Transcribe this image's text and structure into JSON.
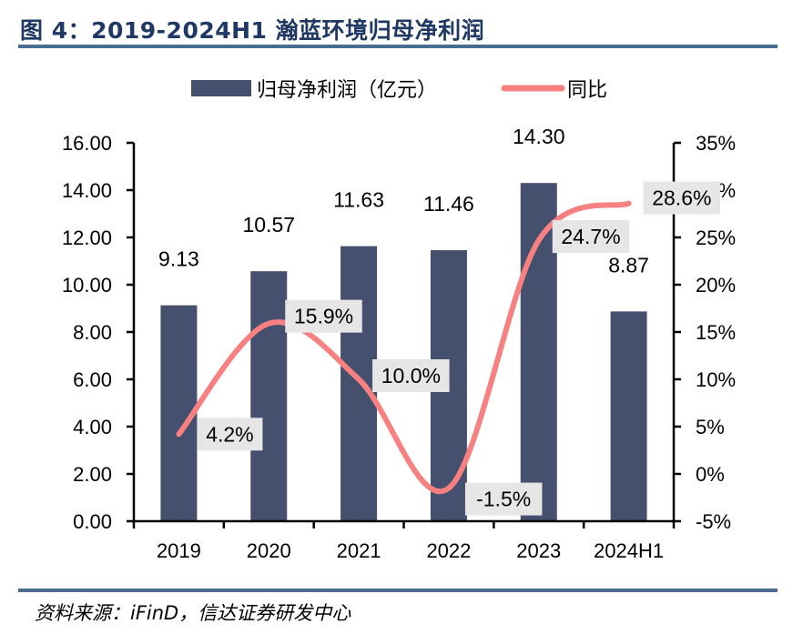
{
  "header": {
    "title": "图 4：2019-2024H1 瀚蓝环境归母净利润"
  },
  "footer": {
    "source": "资料来源：iFinD，信达证券研发中心"
  },
  "colors": {
    "bar": "#454f6e",
    "line": "#f78080",
    "label_box": "#e6e6e6",
    "rule": "#4a6d94",
    "title": "#1f3864"
  },
  "chart_data": {
    "type": "bar+line",
    "title": "2019-2024H1 瀚蓝环境归母净利润",
    "categories": [
      "2019",
      "2020",
      "2021",
      "2022",
      "2023",
      "2024H1"
    ],
    "series": [
      {
        "name": "归母净利润（亿元）",
        "type": "bar",
        "axis": "left",
        "values": [
          9.13,
          10.57,
          11.63,
          11.46,
          14.3,
          8.87
        ],
        "labels": [
          "9.13",
          "10.57",
          "11.63",
          "11.46",
          "14.30",
          "8.87"
        ]
      },
      {
        "name": "同比",
        "type": "line",
        "axis": "right",
        "smooth": true,
        "values": [
          4.2,
          15.9,
          10.0,
          -1.5,
          24.7,
          28.6
        ],
        "labels": [
          "4.2%",
          "15.9%",
          "10.0%",
          "-1.5%",
          "24.7%",
          "28.6%"
        ]
      }
    ],
    "y_left": {
      "range": [
        0,
        16
      ],
      "ticks": [
        0,
        2,
        4,
        6,
        8,
        10,
        12,
        14,
        16
      ],
      "tick_labels": [
        "0.00",
        "2.00",
        "4.00",
        "6.00",
        "8.00",
        "10.00",
        "12.00",
        "14.00",
        "16.00"
      ]
    },
    "y_right": {
      "range": [
        -5,
        35
      ],
      "ticks": [
        -5,
        0,
        5,
        10,
        15,
        20,
        25,
        30,
        35
      ],
      "tick_labels": [
        "-5%",
        "0%",
        "5%",
        "10%",
        "15%",
        "20%",
        "25%",
        "30%",
        "35%"
      ]
    },
    "xlabel": "",
    "ylabel": "",
    "grid": false,
    "legend": {
      "position": "top-center",
      "entries": [
        "归母净利润（亿元）",
        "同比"
      ]
    }
  }
}
